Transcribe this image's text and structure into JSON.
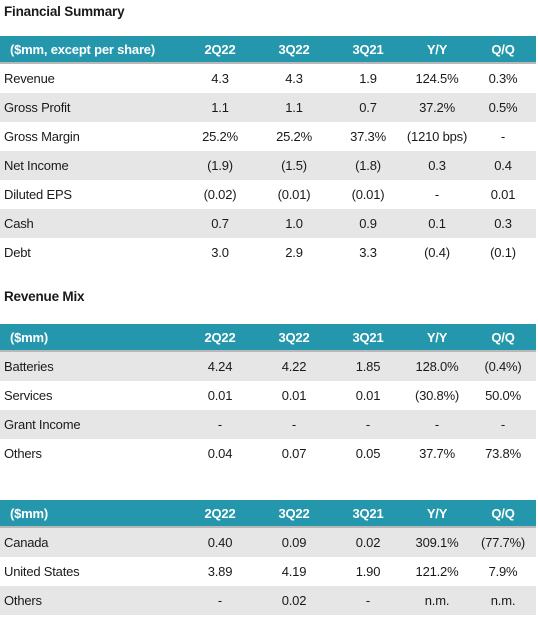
{
  "colors": {
    "header_bg": "#2497ad",
    "header_text": "#ffffff",
    "stripe": "#e6e6e6"
  },
  "financial_summary": {
    "title": "Financial Summary",
    "headers": [
      "($mm, except per share)",
      "2Q22",
      "3Q22",
      "3Q21",
      "Y/Y",
      "Q/Q"
    ],
    "rows": [
      [
        "Revenue",
        "4.3",
        "4.3",
        "1.9",
        "124.5%",
        "0.3%"
      ],
      [
        "Gross Profit",
        "1.1",
        "1.1",
        "0.7",
        "37.2%",
        "0.5%"
      ],
      [
        "Gross Margin",
        "25.2%",
        "25.2%",
        "37.3%",
        "(1210 bps)",
        "-"
      ],
      [
        "Net Income",
        "(1.9)",
        "(1.5)",
        "(1.8)",
        "0.3",
        "0.4"
      ],
      [
        "Diluted EPS",
        "(0.02)",
        "(0.01)",
        "(0.01)",
        "-",
        "0.01"
      ],
      [
        "Cash",
        "0.7",
        "1.0",
        "0.9",
        "0.1",
        "0.3"
      ],
      [
        "Debt",
        "3.0",
        "2.9",
        "3.3",
        "(0.4)",
        "(0.1)"
      ]
    ]
  },
  "revenue_mix": {
    "title": "Revenue Mix",
    "headers": [
      "($mm)",
      "2Q22",
      "3Q22",
      "3Q21",
      "Y/Y",
      "Q/Q"
    ],
    "rows": [
      [
        "Batteries",
        "4.24",
        "4.22",
        "1.85",
        "128.0%",
        "(0.4%)"
      ],
      [
        "Services",
        "0.01",
        "0.01",
        "0.01",
        "(30.8%)",
        "50.0%"
      ],
      [
        "Grant Income",
        "-",
        "-",
        "-",
        "-",
        "-"
      ],
      [
        "Others",
        "0.04",
        "0.07",
        "0.05",
        "37.7%",
        "73.8%"
      ]
    ]
  },
  "geographic_mix": {
    "headers": [
      "($mm)",
      "2Q22",
      "3Q22",
      "3Q21",
      "Y/Y",
      "Q/Q"
    ],
    "rows": [
      [
        "Canada",
        "0.40",
        "0.09",
        "0.02",
        "309.1%",
        "(77.7%)"
      ],
      [
        "United States",
        "3.89",
        "4.19",
        "1.90",
        "121.2%",
        "7.9%"
      ],
      [
        "Others",
        "-",
        "0.02",
        "-",
        "n.m.",
        "n.m."
      ]
    ]
  }
}
